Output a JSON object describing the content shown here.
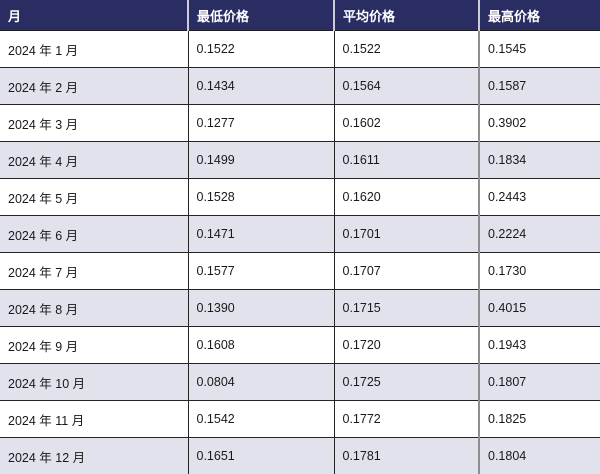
{
  "chart_data": {
    "type": "table",
    "columns": [
      "月",
      "最低价格",
      "平均价格",
      "最高价格"
    ],
    "rows": [
      [
        "2024 年 1 月",
        "0.1522",
        "0.1522",
        "0.1545"
      ],
      [
        "2024 年 2 月",
        "0.1434",
        "0.1564",
        "0.1587"
      ],
      [
        "2024 年 3 月",
        "0.1277",
        "0.1602",
        "0.3902"
      ],
      [
        "2024 年 4 月",
        "0.1499",
        "0.1611",
        "0.1834"
      ],
      [
        "2024 年 5 月",
        "0.1528",
        "0.1620",
        "0.2443"
      ],
      [
        "2024 年 6 月",
        "0.1471",
        "0.1701",
        "0.2224"
      ],
      [
        "2024 年 7 月",
        "0.1577",
        "0.1707",
        "0.1730"
      ],
      [
        "2024 年 8 月",
        "0.1390",
        "0.1715",
        "0.4015"
      ],
      [
        "2024 年 9 月",
        "0.1608",
        "0.1720",
        "0.1943"
      ],
      [
        "2024 年 10 月",
        "0.0804",
        "0.1725",
        "0.1807"
      ],
      [
        "2024 年 11 月",
        "0.1542",
        "0.1772",
        "0.1825"
      ],
      [
        "2024 年 12 月",
        "0.1651",
        "0.1781",
        "0.1804"
      ]
    ],
    "title": "",
    "layout": {
      "header_position": "top",
      "zebra_striping": true
    }
  },
  "colors": {
    "header_bg": "#2a2d62",
    "header_text": "#ffffff",
    "header_divider": "#ccccd9",
    "row_bg": "#ffffff",
    "alt_row_bg": "#e2e2ed",
    "body_text": "#191919",
    "grid_line": "#242424",
    "last_column_divider": "#8f8f8f"
  }
}
